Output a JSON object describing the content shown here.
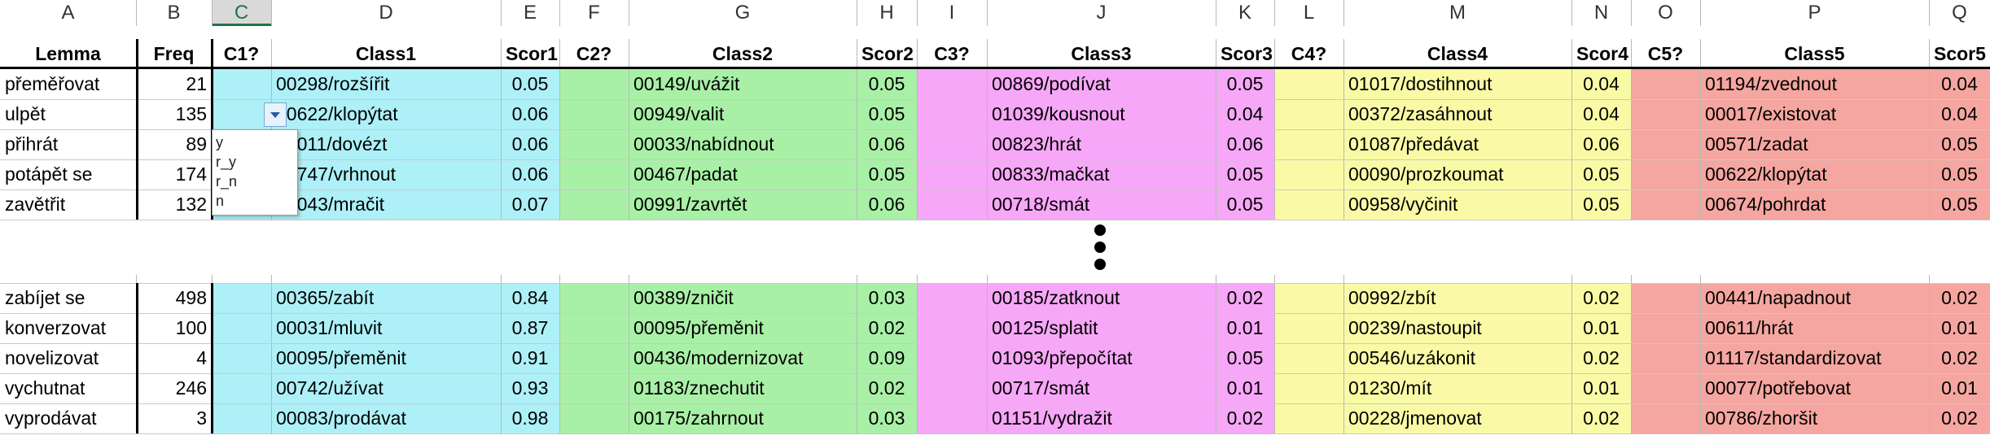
{
  "columns": [
    "A",
    "B",
    "C",
    "D",
    "E",
    "F",
    "G",
    "H",
    "I",
    "J",
    "K",
    "L",
    "M",
    "N",
    "O",
    "P",
    "Q"
  ],
  "headers": [
    "Lemma",
    "Freq",
    "C1?",
    "Class1",
    "Scor1",
    "C2?",
    "Class2",
    "Scor2",
    "C3?",
    "Class3",
    "Scor3",
    "C4?",
    "Class4",
    "Scor4",
    "C5?",
    "Class5",
    "Scor5"
  ],
  "selected_column": "C",
  "colors": {
    "class1": "#aef0f7",
    "class2": "#a9f0a7",
    "class3": "#f7a7f7",
    "class4": "#fafaa6",
    "class5": "#f5a6a0"
  },
  "rows_top": [
    [
      "přeměřovat",
      "21",
      "",
      "00298/rozšířit",
      "0.05",
      "",
      "00149/uvážit",
      "0.05",
      "",
      "00869/podívat",
      "0.05",
      "",
      "01017/dostihnout",
      "0.04",
      "",
      "01194/zvednout",
      "0.04"
    ],
    [
      "ulpět",
      "135",
      "",
      "00622/klopýtat",
      "0.06",
      "",
      "00949/valit",
      "0.05",
      "",
      "01039/kousnout",
      "0.04",
      "",
      "00372/zasáhnout",
      "0.04",
      "",
      "00017/existovat",
      "0.04"
    ],
    [
      "přihrát",
      "89",
      "",
      "00011/dovézt",
      "0.06",
      "",
      "00033/nabídnout",
      "0.06",
      "",
      "00823/hrát",
      "0.06",
      "",
      "01087/předávat",
      "0.06",
      "",
      "00571/zadat",
      "0.05"
    ],
    [
      "potápět se",
      "174",
      "",
      "00747/vrhnout",
      "0.06",
      "",
      "00467/padat",
      "0.05",
      "",
      "00833/mačkat",
      "0.05",
      "",
      "00090/prozkoumat",
      "0.05",
      "",
      "00622/klopýtat",
      "0.05"
    ],
    [
      "zavětřit",
      "132",
      "",
      "00043/mračit",
      "0.07",
      "",
      "00991/zavrtět",
      "0.06",
      "",
      "00718/smát",
      "0.05",
      "",
      "00958/vyčinit",
      "0.05",
      "",
      "00674/pohrdat",
      "0.05"
    ]
  ],
  "rows_bottom": [
    [
      "zabíjet se",
      "498",
      "",
      "00365/zabít",
      "0.84",
      "",
      "00389/zničit",
      "0.03",
      "",
      "00185/zatknout",
      "0.02",
      "",
      "00992/zbít",
      "0.02",
      "",
      "00441/napadnout",
      "0.02"
    ],
    [
      "konverzovat",
      "100",
      "",
      "00031/mluvit",
      "0.87",
      "",
      "00095/přeměnit",
      "0.02",
      "",
      "00125/splatit",
      "0.01",
      "",
      "00239/nastoupit",
      "0.01",
      "",
      "00611/hrát",
      "0.01"
    ],
    [
      "novelizovat",
      "4",
      "",
      "00095/přeměnit",
      "0.91",
      "",
      "00436/modernizovat",
      "0.09",
      "",
      "01093/přepočítat",
      "0.05",
      "",
      "00546/uzákonit",
      "0.02",
      "",
      "01117/standardizovat",
      "0.02"
    ],
    [
      "vychutnat",
      "246",
      "",
      "00742/užívat",
      "0.93",
      "",
      "01183/znechutit",
      "0.02",
      "",
      "00717/smát",
      "0.01",
      "",
      "01230/mít",
      "0.01",
      "",
      "00077/potřebovat",
      "0.01"
    ],
    [
      "vyprodávat",
      "3",
      "",
      "00083/prodávat",
      "0.98",
      "",
      "00175/zahrnout",
      "0.03",
      "",
      "01151/vydražit",
      "0.02",
      "",
      "00228/jmenovat",
      "0.02",
      "",
      "00786/zhoršit",
      "0.02"
    ]
  ],
  "dropdown_options": [
    "y",
    "r_y",
    "r_n",
    "n"
  ],
  "ellipsis_icon": "vertical-ellipsis-icon"
}
